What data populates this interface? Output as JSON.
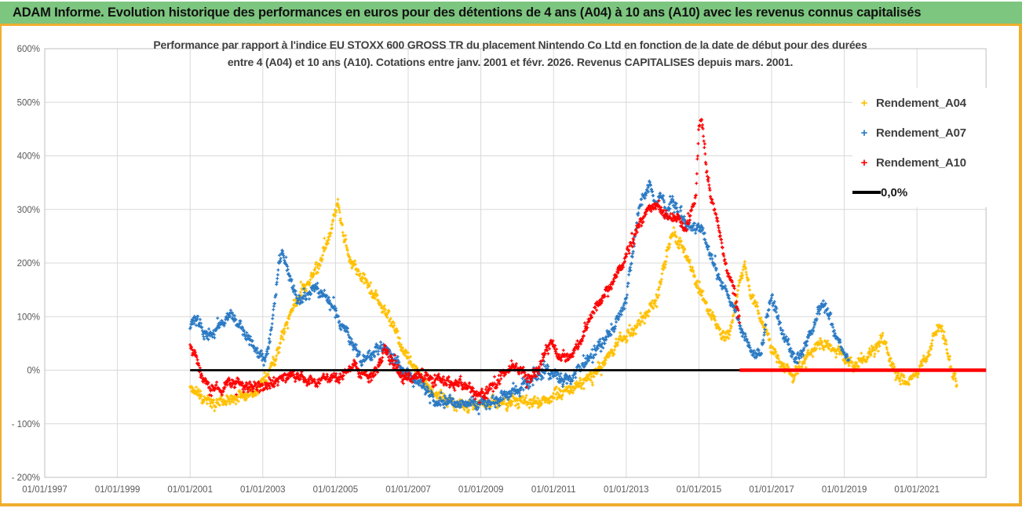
{
  "header": {
    "title": "ADAM Informe. Evolution historique des performances en euros pour des détentions de 4 ans (A04) à 10 ans (A10) avec les revenus connus capitalisés",
    "bg_color": "#7CC67F",
    "frame_color": "#EFAE2D"
  },
  "chart": {
    "title_line1": "Performance par rapport à l'indice EU STOXX 600 GROSS TR  du placement Nintendo Co Ltd en fonction de la date de début pour des durées",
    "title_line2": "entre 4 (A04) et 10 ans (A10). Cotations entre janv. 2001 et févr. 2026. Revenus CAPITALISES depuis mars. 2001.",
    "legend": [
      {
        "label": "Rendement_A04",
        "marker": "+",
        "color": "#FFC000"
      },
      {
        "label": "Rendement_A07",
        "marker": "+",
        "color": "#2979C4"
      },
      {
        "label": "Rendement_A10",
        "marker": "+",
        "color": "#FE0000"
      },
      {
        "label": "0,0%",
        "marker": "line",
        "color": "#000000"
      }
    ]
  },
  "chart_data": {
    "type": "scatter",
    "title": "Performance par rapport à l'indice EU STOXX 600 GROSS TR du placement Nintendo Co Ltd en fonction de la date de début pour des durées entre 4 (A04) et 10 ans (A10). Cotations entre janv. 2001 et févr. 2026. Revenus CAPITALISES depuis mars. 2001.",
    "grid": true,
    "legend_position": "right-inside",
    "y_axis": {
      "min": -200,
      "max": 600,
      "step": 100,
      "tick_labels": [
        "600%",
        "500%",
        "400%",
        "300%",
        "200%",
        "100%",
        "0%",
        "- 100%",
        "- 200%"
      ]
    },
    "x_axis": {
      "start_year": 1997,
      "end_year": 2022.9,
      "tick_step_years": 2,
      "tick_labels": [
        "01/01/1997",
        "01/01/1999",
        "01/01/2001",
        "01/01/2003",
        "01/01/2005",
        "01/01/2007",
        "01/01/2009",
        "01/01/2011",
        "01/01/2013",
        "01/01/2015",
        "01/01/2017",
        "01/01/2019",
        "01/01/2021"
      ],
      "tick_years": [
        1997,
        1999,
        2001,
        2003,
        2005,
        2007,
        2009,
        2011,
        2013,
        2015,
        2017,
        2019,
        2021
      ]
    },
    "zero_line": {
      "label": "0,0%",
      "value": 0,
      "from_year": 2001.0,
      "to_year": 2022.9,
      "color": "#000000"
    },
    "series": [
      {
        "name": "Rendement_A04",
        "color": "#FFC000",
        "seed": 11,
        "noise_pct": 9,
        "anchors": [
          [
            2001.0,
            -30
          ],
          [
            2001.3,
            -50
          ],
          [
            2001.7,
            -62
          ],
          [
            2002.0,
            -55
          ],
          [
            2002.4,
            -46
          ],
          [
            2002.8,
            -40
          ],
          [
            2003.1,
            -12
          ],
          [
            2003.35,
            25
          ],
          [
            2003.6,
            75
          ],
          [
            2003.85,
            120
          ],
          [
            2004.1,
            150
          ],
          [
            2004.35,
            175
          ],
          [
            2004.6,
            205
          ],
          [
            2004.8,
            245
          ],
          [
            2005.0,
            295
          ],
          [
            2005.08,
            315
          ],
          [
            2005.2,
            255
          ],
          [
            2005.4,
            205
          ],
          [
            2005.6,
            185
          ],
          [
            2005.8,
            170
          ],
          [
            2006.0,
            145
          ],
          [
            2006.2,
            128
          ],
          [
            2006.4,
            105
          ],
          [
            2006.6,
            82
          ],
          [
            2006.8,
            48
          ],
          [
            2007.0,
            22
          ],
          [
            2007.2,
            2
          ],
          [
            2007.4,
            -18
          ],
          [
            2007.6,
            -35
          ],
          [
            2007.9,
            -52
          ],
          [
            2008.2,
            -62
          ],
          [
            2008.6,
            -68
          ],
          [
            2008.9,
            -64
          ],
          [
            2009.3,
            -60
          ],
          [
            2009.7,
            -62
          ],
          [
            2010.1,
            -57
          ],
          [
            2010.5,
            -60
          ],
          [
            2010.8,
            -55
          ],
          [
            2011.0,
            -48
          ],
          [
            2011.3,
            -40
          ],
          [
            2011.6,
            -30
          ],
          [
            2011.9,
            -18
          ],
          [
            2012.1,
            -8
          ],
          [
            2012.3,
            6
          ],
          [
            2012.5,
            24
          ],
          [
            2012.7,
            45
          ],
          [
            2012.9,
            60
          ],
          [
            2013.1,
            70
          ],
          [
            2013.4,
            92
          ],
          [
            2013.7,
            115
          ],
          [
            2013.9,
            150
          ],
          [
            2014.1,
            215
          ],
          [
            2014.3,
            258
          ],
          [
            2014.5,
            232
          ],
          [
            2014.7,
            210
          ],
          [
            2014.9,
            168
          ],
          [
            2015.1,
            132
          ],
          [
            2015.3,
            108
          ],
          [
            2015.5,
            82
          ],
          [
            2015.7,
            58
          ],
          [
            2015.9,
            85
          ],
          [
            2016.1,
            155
          ],
          [
            2016.25,
            195
          ],
          [
            2016.4,
            150
          ],
          [
            2016.6,
            115
          ],
          [
            2016.8,
            80
          ],
          [
            2017.0,
            40
          ],
          [
            2017.2,
            15
          ],
          [
            2017.45,
            2
          ],
          [
            2017.6,
            -10
          ],
          [
            2017.8,
            8
          ],
          [
            2018.0,
            28
          ],
          [
            2018.2,
            42
          ],
          [
            2018.45,
            52
          ],
          [
            2018.7,
            40
          ],
          [
            2018.9,
            30
          ],
          [
            2019.1,
            15
          ],
          [
            2019.3,
            10
          ],
          [
            2019.5,
            20
          ],
          [
            2019.7,
            30
          ],
          [
            2019.9,
            45
          ],
          [
            2020.05,
            58
          ],
          [
            2020.15,
            52
          ],
          [
            2020.3,
            8
          ],
          [
            2020.5,
            -15
          ],
          [
            2020.7,
            -22
          ],
          [
            2020.9,
            -12
          ],
          [
            2021.1,
            8
          ],
          [
            2021.3,
            28
          ],
          [
            2021.5,
            68
          ],
          [
            2021.62,
            90
          ],
          [
            2021.75,
            58
          ],
          [
            2021.9,
            18
          ],
          [
            2022.0,
            -12
          ],
          [
            2022.1,
            -28
          ]
        ]
      },
      {
        "name": "Rendement_A07",
        "color": "#2979C4",
        "seed": 23,
        "noise_pct": 9,
        "anchors": [
          [
            2001.0,
            85
          ],
          [
            2001.15,
            98
          ],
          [
            2001.3,
            80
          ],
          [
            2001.5,
            62
          ],
          [
            2001.7,
            76
          ],
          [
            2001.9,
            90
          ],
          [
            2002.1,
            104
          ],
          [
            2002.3,
            88
          ],
          [
            2002.5,
            72
          ],
          [
            2002.7,
            50
          ],
          [
            2002.9,
            30
          ],
          [
            2003.05,
            16
          ],
          [
            2003.2,
            58
          ],
          [
            2003.35,
            140
          ],
          [
            2003.45,
            205
          ],
          [
            2003.55,
            218
          ],
          [
            2003.65,
            195
          ],
          [
            2003.8,
            160
          ],
          [
            2003.95,
            130
          ],
          [
            2004.1,
            132
          ],
          [
            2004.3,
            148
          ],
          [
            2004.5,
            150
          ],
          [
            2004.7,
            140
          ],
          [
            2004.9,
            122
          ],
          [
            2005.1,
            96
          ],
          [
            2005.3,
            72
          ],
          [
            2005.5,
            46
          ],
          [
            2005.7,
            22
          ],
          [
            2005.9,
            26
          ],
          [
            2006.1,
            36
          ],
          [
            2006.3,
            46
          ],
          [
            2006.5,
            30
          ],
          [
            2006.7,
            16
          ],
          [
            2006.9,
            -4
          ],
          [
            2007.1,
            -14
          ],
          [
            2007.35,
            -24
          ],
          [
            2007.6,
            -48
          ],
          [
            2007.8,
            -60
          ],
          [
            2008.1,
            -58
          ],
          [
            2008.4,
            -64
          ],
          [
            2008.7,
            -60
          ],
          [
            2008.95,
            -66
          ],
          [
            2009.2,
            -62
          ],
          [
            2009.5,
            -54
          ],
          [
            2009.8,
            -44
          ],
          [
            2010.1,
            -32
          ],
          [
            2010.4,
            -18
          ],
          [
            2010.7,
            -5
          ],
          [
            2010.85,
            0
          ],
          [
            2011.0,
            -6
          ],
          [
            2011.2,
            -16
          ],
          [
            2011.4,
            -20
          ],
          [
            2011.6,
            -6
          ],
          [
            2011.8,
            8
          ],
          [
            2012.0,
            24
          ],
          [
            2012.2,
            40
          ],
          [
            2012.4,
            55
          ],
          [
            2012.6,
            74
          ],
          [
            2012.8,
            96
          ],
          [
            2013.0,
            135
          ],
          [
            2013.2,
            230
          ],
          [
            2013.35,
            300
          ],
          [
            2013.5,
            330
          ],
          [
            2013.65,
            345
          ],
          [
            2013.8,
            310
          ],
          [
            2013.95,
            330
          ],
          [
            2014.1,
            295
          ],
          [
            2014.25,
            315
          ],
          [
            2014.4,
            300
          ],
          [
            2014.6,
            280
          ],
          [
            2014.8,
            262
          ],
          [
            2015.0,
            272
          ],
          [
            2015.2,
            240
          ],
          [
            2015.4,
            198
          ],
          [
            2015.6,
            165
          ],
          [
            2015.8,
            140
          ],
          [
            2016.0,
            112
          ],
          [
            2016.2,
            72
          ],
          [
            2016.4,
            42
          ],
          [
            2016.55,
            28
          ],
          [
            2016.7,
            35
          ],
          [
            2016.85,
            85
          ],
          [
            2017.0,
            138
          ],
          [
            2017.15,
            105
          ],
          [
            2017.3,
            70
          ],
          [
            2017.5,
            40
          ],
          [
            2017.7,
            16
          ],
          [
            2017.9,
            42
          ],
          [
            2018.1,
            72
          ],
          [
            2018.3,
            112
          ],
          [
            2018.45,
            125
          ],
          [
            2018.6,
            98
          ],
          [
            2018.75,
            68
          ],
          [
            2018.9,
            45
          ],
          [
            2019.05,
            28
          ],
          [
            2019.12,
            20
          ]
        ]
      },
      {
        "name": "Rendement_A10",
        "color": "#FE0000",
        "seed": 37,
        "noise_pct": 8,
        "flat_zero_from": 2016.12,
        "flat_zero_to": 2022.9,
        "anchors": [
          [
            2001.0,
            48
          ],
          [
            2001.12,
            30
          ],
          [
            2001.25,
            6
          ],
          [
            2001.4,
            -20
          ],
          [
            2001.55,
            -38
          ],
          [
            2001.7,
            -30
          ],
          [
            2001.85,
            -38
          ],
          [
            2002.0,
            -28
          ],
          [
            2002.2,
            -23
          ],
          [
            2002.4,
            -28
          ],
          [
            2002.6,
            -33
          ],
          [
            2002.8,
            -28
          ],
          [
            2003.0,
            -33
          ],
          [
            2003.2,
            -28
          ],
          [
            2003.4,
            -18
          ],
          [
            2003.6,
            -12
          ],
          [
            2003.8,
            -8
          ],
          [
            2004.0,
            -13
          ],
          [
            2004.2,
            -18
          ],
          [
            2004.4,
            -23
          ],
          [
            2004.6,
            -18
          ],
          [
            2004.8,
            -13
          ],
          [
            2005.0,
            -15
          ],
          [
            2005.2,
            -10
          ],
          [
            2005.4,
            4
          ],
          [
            2005.55,
            10
          ],
          [
            2005.7,
            -5
          ],
          [
            2005.9,
            -12
          ],
          [
            2006.05,
            -8
          ],
          [
            2006.2,
            12
          ],
          [
            2006.35,
            42
          ],
          [
            2006.5,
            25
          ],
          [
            2006.65,
            4
          ],
          [
            2006.8,
            -10
          ],
          [
            2007.0,
            -16
          ],
          [
            2007.25,
            -10
          ],
          [
            2007.5,
            -12
          ],
          [
            2007.75,
            -18
          ],
          [
            2008.0,
            -18
          ],
          [
            2008.25,
            -27
          ],
          [
            2008.5,
            -26
          ],
          [
            2008.75,
            -38
          ],
          [
            2009.0,
            -48
          ],
          [
            2009.2,
            -38
          ],
          [
            2009.4,
            -24
          ],
          [
            2009.6,
            -10
          ],
          [
            2009.75,
            0
          ],
          [
            2009.9,
            8
          ],
          [
            2010.05,
            2
          ],
          [
            2010.2,
            -8
          ],
          [
            2010.35,
            -14
          ],
          [
            2010.5,
            -5
          ],
          [
            2010.65,
            10
          ],
          [
            2010.8,
            38
          ],
          [
            2010.9,
            54
          ],
          [
            2011.05,
            36
          ],
          [
            2011.2,
            26
          ],
          [
            2011.35,
            20
          ],
          [
            2011.5,
            30
          ],
          [
            2011.65,
            44
          ],
          [
            2011.8,
            62
          ],
          [
            2012.0,
            100
          ],
          [
            2012.2,
            122
          ],
          [
            2012.4,
            140
          ],
          [
            2012.6,
            160
          ],
          [
            2012.8,
            185
          ],
          [
            2013.0,
            215
          ],
          [
            2013.2,
            248
          ],
          [
            2013.4,
            278
          ],
          [
            2013.6,
            298
          ],
          [
            2013.8,
            308
          ],
          [
            2014.0,
            298
          ],
          [
            2014.2,
            282
          ],
          [
            2014.4,
            286
          ],
          [
            2014.6,
            262
          ],
          [
            2014.8,
            292
          ],
          [
            2014.92,
            330
          ],
          [
            2015.0,
            455
          ],
          [
            2015.08,
            465
          ],
          [
            2015.15,
            420
          ],
          [
            2015.25,
            355
          ],
          [
            2015.35,
            315
          ],
          [
            2015.5,
            288
          ],
          [
            2015.65,
            225
          ],
          [
            2015.8,
            180
          ],
          [
            2015.95,
            155
          ],
          [
            2016.05,
            118
          ],
          [
            2016.12,
            95
          ]
        ]
      }
    ]
  }
}
